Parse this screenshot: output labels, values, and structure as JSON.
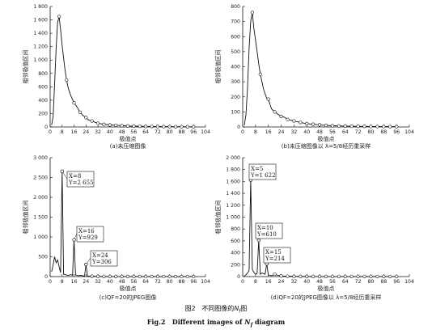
{
  "figure": {
    "title_cn_prefix": "图2",
    "title_cn": "不同图像的",
    "title_symbol": "N",
    "title_symbol_sub": "f",
    "title_cn_suffix": "图",
    "title_en_prefix": "Fig.2",
    "title_en": "Different images of",
    "title_en_symbol": "N",
    "title_en_symbol_sub": "f",
    "title_en_suffix": "diagram"
  },
  "chart_data": [
    {
      "id": "a",
      "type": "line",
      "caption": "(a)未压缩图像",
      "xlabel": "极值点",
      "ylabel": "相邻极值区间",
      "xlim": [
        0,
        104
      ],
      "ylim": [
        0,
        1800
      ],
      "yticks": [
        0,
        200,
        400,
        600,
        800,
        1000,
        1200,
        1400,
        1600,
        1800
      ],
      "ytick_labels": [
        "0",
        "200",
        "400",
        "600",
        "800",
        "1 000",
        "1 200",
        "1 400",
        "1 600",
        "1 800"
      ],
      "xticks": [
        0,
        8,
        16,
        24,
        32,
        40,
        48,
        56,
        64,
        72,
        80,
        88,
        96,
        104
      ],
      "x": [
        1,
        2,
        3,
        4,
        5,
        6,
        7,
        8,
        9,
        10,
        11,
        12,
        13,
        14,
        15,
        16,
        18,
        20,
        22,
        24,
        26,
        28,
        30,
        32,
        36,
        40,
        44,
        48,
        52,
        56,
        60,
        64,
        68,
        72,
        76,
        80,
        84,
        88,
        92,
        96
      ],
      "y": [
        30,
        160,
        640,
        1180,
        1560,
        1650,
        1450,
        1220,
        1030,
        840,
        700,
        590,
        520,
        460,
        410,
        360,
        300,
        220,
        170,
        140,
        100,
        90,
        70,
        55,
        40,
        30,
        25,
        20,
        15,
        12,
        10,
        8,
        7,
        6,
        5,
        5,
        4,
        4,
        3,
        3
      ],
      "markers_x": [
        6,
        11,
        16,
        20,
        24,
        28,
        32,
        36,
        40,
        44,
        48,
        52,
        56,
        60,
        64,
        68,
        72,
        76,
        80,
        84,
        88,
        92,
        96
      ],
      "annotations": []
    },
    {
      "id": "b",
      "type": "line",
      "caption": "(b)未压缩图像以 λ=5/8经历重采样",
      "xlabel": "极值点",
      "ylabel": "相邻极值区间",
      "xlim": [
        0,
        104
      ],
      "ylim": [
        0,
        800
      ],
      "yticks": [
        0,
        100,
        200,
        300,
        400,
        500,
        600,
        700,
        800
      ],
      "ytick_labels": [
        "0",
        "100",
        "200",
        "300",
        "400",
        "500",
        "600",
        "700",
        "800"
      ],
      "xticks": [
        0,
        8,
        16,
        24,
        32,
        40,
        48,
        56,
        64,
        72,
        80,
        88,
        96,
        104
      ],
      "x": [
        1,
        2,
        3,
        4,
        5,
        6,
        7,
        8,
        9,
        10,
        11,
        12,
        13,
        14,
        15,
        16,
        17,
        18,
        20,
        22,
        24,
        26,
        28,
        30,
        32,
        36,
        40,
        44,
        48,
        52,
        56,
        60,
        64,
        68,
        72,
        76,
        80,
        84,
        88,
        92,
        96
      ],
      "y": [
        10,
        80,
        250,
        520,
        700,
        760,
        650,
        580,
        500,
        420,
        350,
        300,
        250,
        220,
        190,
        185,
        150,
        120,
        100,
        85,
        70,
        65,
        50,
        45,
        40,
        30,
        22,
        18,
        14,
        10,
        8,
        7,
        6,
        5,
        4,
        4,
        3,
        3,
        3,
        2,
        2
      ],
      "markers_x": [
        6,
        11,
        16,
        20,
        24,
        28,
        32,
        36,
        40,
        44,
        48,
        52,
        56,
        60,
        64,
        68,
        72,
        76,
        80,
        84,
        88,
        92,
        96
      ],
      "annotations": []
    },
    {
      "id": "c",
      "type": "line",
      "caption": "(c)QF=20的JPEG图像",
      "xlabel": "极值点",
      "ylabel": "相邻极值区间",
      "xlim": [
        0,
        104
      ],
      "ylim": [
        0,
        3000
      ],
      "yticks": [
        0,
        500,
        1000,
        1500,
        2000,
        2500,
        3000
      ],
      "ytick_labels": [
        "0",
        "500",
        "1 000",
        "1 500",
        "2 000",
        "2 500",
        "3 000"
      ],
      "xticks": [
        0,
        8,
        16,
        24,
        32,
        40,
        48,
        56,
        64,
        72,
        80,
        88,
        96,
        104
      ],
      "x": [
        1,
        2,
        3,
        4,
        5,
        6,
        7,
        8,
        9,
        10,
        11,
        12,
        13,
        14,
        15,
        16,
        17,
        18,
        19,
        20,
        22,
        23,
        24,
        25,
        26,
        28,
        30,
        32,
        36,
        40,
        44,
        48,
        52,
        56,
        60,
        64,
        68,
        72,
        76,
        80,
        84,
        88,
        92,
        96
      ],
      "y": [
        120,
        300,
        500,
        350,
        420,
        250,
        100,
        2655,
        60,
        50,
        40,
        30,
        40,
        50,
        30,
        929,
        40,
        30,
        20,
        30,
        20,
        10,
        306,
        15,
        10,
        8,
        6,
        5,
        4,
        3,
        3,
        2,
        2,
        2,
        1,
        1,
        1,
        1,
        1,
        1,
        1,
        1,
        1,
        1
      ],
      "markers_x": [
        8,
        16,
        24,
        28,
        32,
        36,
        40,
        44,
        48,
        52,
        56,
        60,
        64,
        68,
        72,
        76,
        80,
        84,
        88,
        92,
        96
      ],
      "annotations": [
        {
          "x": 8,
          "y": 2655,
          "line1": "X=8",
          "line2": "Y=2 655"
        },
        {
          "x": 16,
          "y": 929,
          "line1": "X=16",
          "line2": "Y=929"
        },
        {
          "x": 24,
          "y": 306,
          "line1": "X=24",
          "line2": "Y=306"
        }
      ]
    },
    {
      "id": "d",
      "type": "line",
      "caption": "(d)QF=20的JPEG图像以 λ=5/8经历重采样",
      "xlabel": "极值点",
      "ylabel": "相邻极值区间",
      "xlim": [
        0,
        104
      ],
      "ylim": [
        0,
        2000
      ],
      "yticks": [
        0,
        200,
        400,
        600,
        800,
        1000,
        1200,
        1400,
        1600,
        1800,
        2000
      ],
      "ytick_labels": [
        "0",
        "200",
        "400",
        "600",
        "800",
        "1 000",
        "1 200",
        "1 400",
        "1 600",
        "1 800",
        "2 000"
      ],
      "xticks": [
        0,
        8,
        16,
        24,
        32,
        40,
        48,
        56,
        64,
        72,
        80,
        88,
        96,
        104
      ],
      "x": [
        1,
        2,
        3,
        4,
        5,
        6,
        7,
        8,
        9,
        10,
        11,
        12,
        13,
        14,
        15,
        16,
        17,
        18,
        20,
        22,
        24,
        26,
        28,
        30,
        32,
        36,
        40,
        44,
        48,
        52,
        56,
        60,
        64,
        68,
        72,
        76,
        80,
        84,
        88,
        92,
        96
      ],
      "y": [
        10,
        30,
        60,
        100,
        1622,
        120,
        70,
        40,
        50,
        610,
        40,
        60,
        50,
        40,
        214,
        30,
        20,
        15,
        40,
        20,
        10,
        8,
        6,
        5,
        4,
        3,
        3,
        2,
        2,
        2,
        1,
        1,
        1,
        1,
        1,
        1,
        1,
        1,
        1,
        1,
        1
      ],
      "markers_x": [
        5,
        10,
        15,
        20,
        24,
        28,
        32,
        36,
        40,
        44,
        48,
        52,
        56,
        60,
        64,
        68,
        72,
        76,
        80,
        84,
        88,
        92,
        96
      ],
      "annotations": [
        {
          "x": 5,
          "y": 1622,
          "line1": "X=5",
          "line2": "Y=1 622"
        },
        {
          "x": 10,
          "y": 610,
          "line1": "X=10",
          "line2": "Y=610"
        },
        {
          "x": 15,
          "y": 214,
          "line1": "X=15",
          "line2": "Y=214"
        }
      ]
    }
  ]
}
